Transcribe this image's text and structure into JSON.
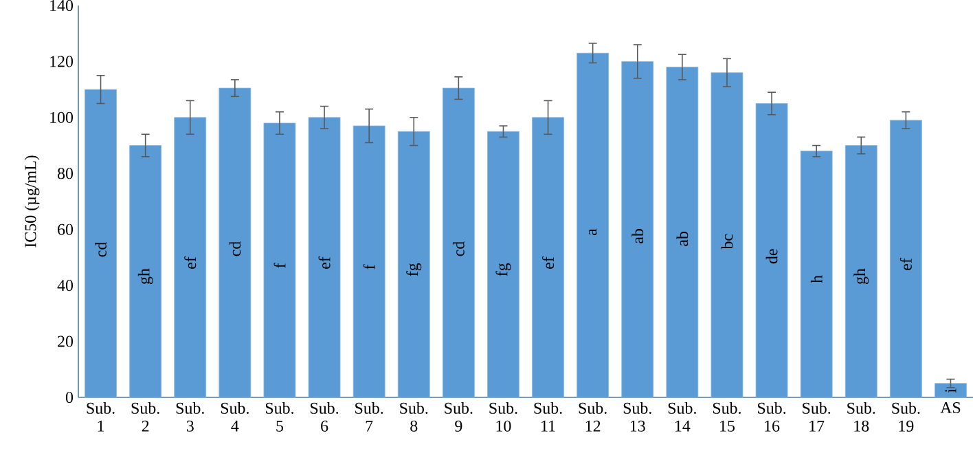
{
  "chart_data": {
    "type": "bar",
    "ylabel": "IC50 (µg/mL)",
    "categories": [
      "Sub. 1",
      "Sub. 2",
      "Sub. 3",
      "Sub. 4",
      "Sub. 5",
      "Sub. 6",
      "Sub. 7",
      "Sub. 8",
      "Sub. 9",
      "Sub. 10",
      "Sub. 11",
      "Sub. 12",
      "Sub. 13",
      "Sub. 14",
      "Sub. 15",
      "Sub. 16",
      "Sub. 17",
      "Sub. 18",
      "Sub. 19",
      "AS"
    ],
    "values": [
      110,
      90,
      100,
      110.5,
      98,
      100,
      97,
      95,
      110.5,
      95,
      100,
      123,
      120,
      118,
      116,
      105,
      88,
      90,
      99,
      5
    ],
    "errors": [
      5,
      4,
      6,
      3,
      4,
      4,
      6,
      5,
      4,
      2,
      6,
      3.5,
      6,
      4.5,
      5,
      4,
      2,
      3,
      3,
      1.5
    ],
    "color": "#5b9bd5",
    "ylim": [
      0,
      140
    ],
    "yticks": [
      0,
      20,
      40,
      60,
      80,
      100,
      120,
      140
    ],
    "grid": false,
    "annotations": [
      "cd",
      "gh",
      "ef",
      "cd",
      "f",
      "ef",
      "f",
      "fg",
      "cd",
      "fg",
      "ef",
      "a",
      "ab",
      "ab",
      "bc",
      "de",
      "h",
      "gh",
      "ef",
      "i"
    ]
  }
}
